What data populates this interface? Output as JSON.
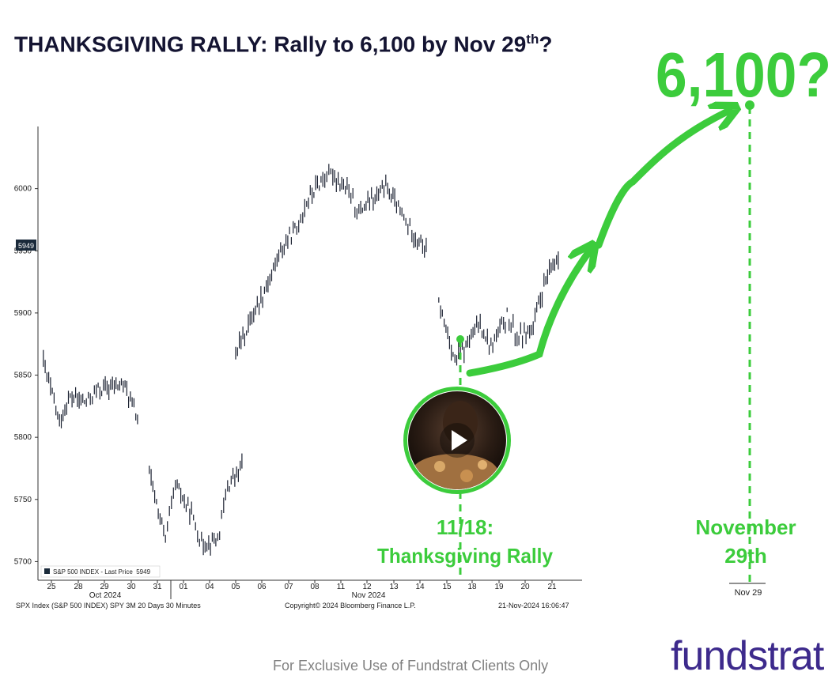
{
  "title": {
    "main": "THANKSGIVING RALLY: Rally to 6,100 by Nov 29",
    "sup": "th",
    "suffix": "?"
  },
  "footer": "For Exclusive Use of Fundstrat Clients Only",
  "logo": "fundstrat",
  "colors": {
    "accent_green": "#3ccc3c",
    "bar_color": "#1a2030",
    "title_navy": "#141432",
    "logo_purple": "#3d2a8c"
  },
  "video": {
    "icon": "play-icon"
  },
  "chart_data": {
    "type": "ohlc",
    "ylim": [
      5685,
      6050
    ],
    "yticks": [
      5700,
      5750,
      5800,
      5850,
      5900,
      5950,
      6000
    ],
    "last_price_label": "5949",
    "legend": "S&P 500 INDEX - Last Price  5949",
    "xticks": [
      "25",
      "28",
      "29",
      "30",
      "31",
      "01",
      "04",
      "05",
      "06",
      "07",
      "08",
      "11",
      "12",
      "13",
      "14",
      "15",
      "18",
      "19",
      "20",
      "21"
    ],
    "month_labels": [
      "Oct 2024",
      "Nov 2024"
    ],
    "extra_tick": "Nov 29",
    "source_left": "SPX Index (S&P 500 INDEX) SPY 3M 20 Days 30 Minutes",
    "source_center": "Copyright© 2024 Bloomberg Finance L.P.",
    "source_right": "21-Nov-2024 16:06:47",
    "series": [
      {
        "x": [
          "25",
          "25",
          "28",
          "28",
          "29",
          "29",
          "30",
          "30"
        ],
        "values": [
          5860,
          5812,
          5832,
          5828,
          5838,
          5840,
          5844,
          5812
        ]
      },
      {
        "x": [
          "31",
          "31",
          "01",
          "01",
          "04",
          "04",
          "05",
          "05"
        ],
        "values": [
          5770,
          5718,
          5762,
          5738,
          5714,
          5718,
          5760,
          5778
        ]
      },
      {
        "x": [
          "05",
          "06",
          "06",
          "07",
          "07",
          "08",
          "08",
          "11",
          "11",
          "12",
          "12",
          "13",
          "13",
          "14",
          "14"
        ],
        "values": [
          5868,
          5900,
          5928,
          5950,
          5968,
          5990,
          6008,
          6012,
          5996,
          5982,
          5992,
          6002,
          5978,
          5966,
          5948
        ]
      },
      {
        "x": [
          "15",
          "15",
          "18",
          "18",
          "19",
          "19",
          "20",
          "20",
          "21",
          "21"
        ],
        "values": [
          5908,
          5862,
          5870,
          5892,
          5872,
          5898,
          5880,
          5888,
          5922,
          5949
        ]
      }
    ],
    "annotations": [
      {
        "text": "6,100?",
        "target": 6100
      },
      {
        "text": "11/18:",
        "line2": "Thanksgiving Rally"
      },
      {
        "text": "November",
        "line2": "29th"
      }
    ]
  }
}
